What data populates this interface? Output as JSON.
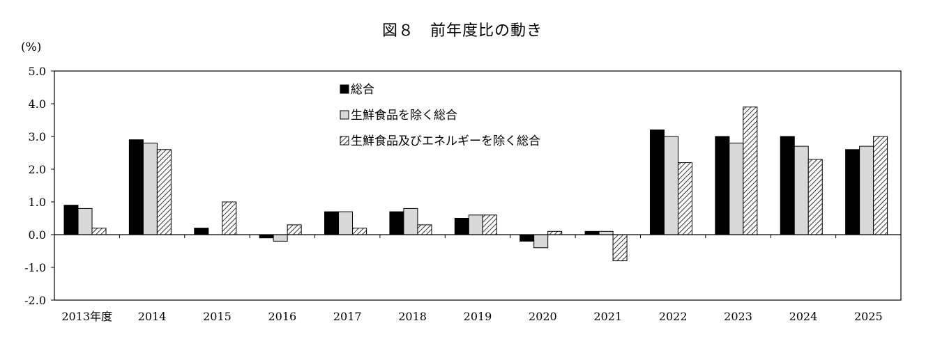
{
  "chart_data": {
    "type": "bar",
    "title": "図８　前年度比の動き",
    "ylabel": "(%)",
    "ylim": [
      -2.0,
      5.0
    ],
    "yticks": [
      "5.0",
      "4.0",
      "3.0",
      "2.0",
      "1.0",
      "0.0",
      "-1.0",
      "-2.0"
    ],
    "categories": [
      "2013年度",
      "2014",
      "2015",
      "2016",
      "2017",
      "2018",
      "2019",
      "2020",
      "2021",
      "2022",
      "2023",
      "2024",
      "2025"
    ],
    "legend_position": "top-center",
    "grid": false,
    "series": [
      {
        "name": "総合",
        "fill": "#000000",
        "values": [
          0.9,
          2.9,
          0.2,
          -0.1,
          0.7,
          0.7,
          0.5,
          -0.2,
          0.1,
          3.2,
          3.0,
          3.0,
          2.6
        ]
      },
      {
        "name": "生鮮食品を除く総合",
        "fill": "#d9d9d9",
        "values": [
          0.8,
          2.8,
          0.0,
          -0.2,
          0.7,
          0.8,
          0.6,
          -0.4,
          0.1,
          3.0,
          2.8,
          2.7,
          2.7
        ]
      },
      {
        "name": "生鮮食品及びエネルギーを除く総合",
        "fill": "hatch",
        "values": [
          0.2,
          2.6,
          1.0,
          0.3,
          0.2,
          0.3,
          0.6,
          0.1,
          -0.8,
          2.2,
          3.9,
          2.3,
          3.0
        ]
      }
    ]
  }
}
